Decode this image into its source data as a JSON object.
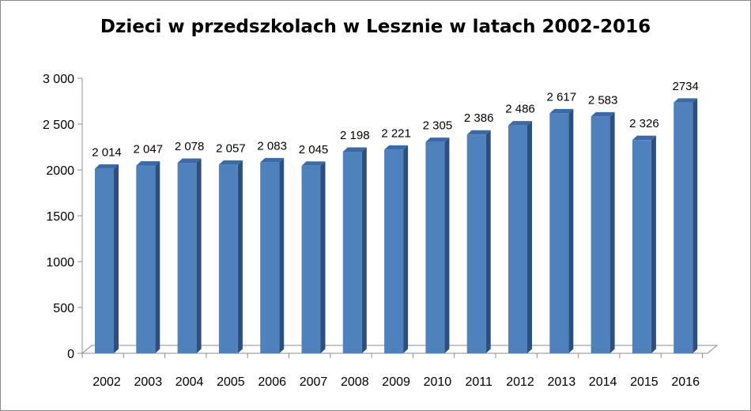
{
  "chart_data": {
    "type": "bar",
    "title": "Dzieci w przedszkolach w Lesznie w latach 2002-2016",
    "xlabel": "",
    "ylabel": "",
    "categories": [
      "2002",
      "2003",
      "2004",
      "2005",
      "2006",
      "2007",
      "2008",
      "2009",
      "2010",
      "2011",
      "2012",
      "2013",
      "2014",
      "2015",
      "2016"
    ],
    "values": [
      2014,
      2047,
      2078,
      2057,
      2083,
      2045,
      2198,
      2221,
      2305,
      2386,
      2486,
      2617,
      2583,
      2326,
      2734
    ],
    "data_labels": [
      "2 014",
      "2 047",
      "2 078",
      "2 057",
      "2 083",
      "2 045",
      "2 198",
      "2 221",
      "2 305",
      "2 386",
      "2 486",
      "2 617",
      "2 583",
      "2 326",
      "2734"
    ],
    "ylim": [
      0,
      3000
    ],
    "y_ticks": [
      0,
      500,
      1000,
      1500,
      2000,
      2500,
      3000
    ],
    "y_tick_labels": [
      "0",
      "500",
      "1000",
      "1500",
      "2000",
      "2 500",
      "3 000"
    ],
    "grid": false,
    "legend": "none",
    "bar_color": "#4f81bd",
    "bar_side_color": "#2b4f80",
    "bar_top_color": "#3a6aa8"
  }
}
